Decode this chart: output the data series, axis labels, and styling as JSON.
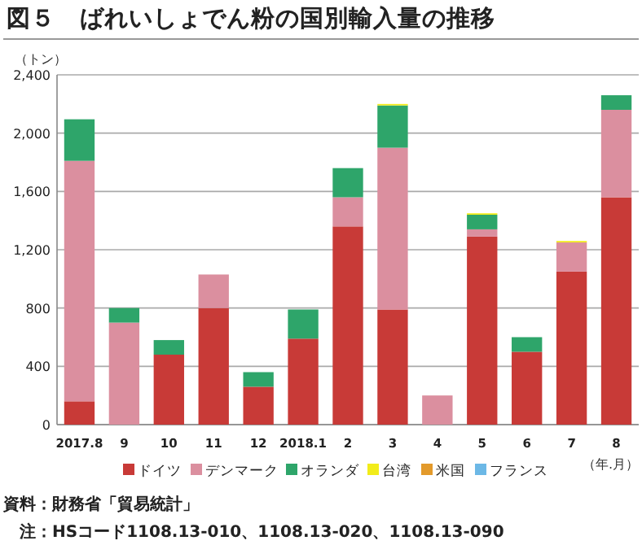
{
  "chart_data": {
    "type": "bar",
    "stacked": true,
    "title": "図５　ばれいしょでん粉の国別輸入量の推移",
    "ylabel": "（トン）",
    "xlabel": "（年.月）",
    "categories": [
      "2017.8",
      "9",
      "10",
      "11",
      "12",
      "2018.1",
      "2",
      "3",
      "4",
      "5",
      "6",
      "7",
      "8"
    ],
    "series": [
      {
        "name": "ドイツ",
        "color": "#c83a37",
        "values": [
          160,
          null,
          480,
          800,
          260,
          590,
          1360,
          790,
          null,
          1290,
          500,
          1050,
          1560
        ]
      },
      {
        "name": "デンマーク",
        "color": "#db8f9f",
        "values": [
          1650,
          700,
          null,
          230,
          null,
          null,
          200,
          1110,
          200,
          50,
          null,
          200,
          600
        ]
      },
      {
        "name": "オランダ",
        "color": "#2ea56a",
        "values": [
          285,
          100,
          100,
          null,
          100,
          200,
          200,
          290,
          null,
          100,
          100,
          null,
          100
        ]
      },
      {
        "name": "台湾",
        "color": "#f2ec1a",
        "values": [
          null,
          null,
          null,
          null,
          null,
          null,
          null,
          10,
          null,
          10,
          null,
          10,
          null
        ]
      },
      {
        "name": "米国",
        "color": "#e39a2b",
        "values": [
          null,
          null,
          null,
          null,
          null,
          null,
          null,
          null,
          null,
          null,
          null,
          null,
          null
        ]
      },
      {
        "name": "フランス",
        "color": "#6cb8e6",
        "values": [
          null,
          null,
          null,
          null,
          null,
          null,
          null,
          null,
          null,
          null,
          null,
          null,
          null
        ]
      }
    ],
    "ylim": [
      0,
      2400
    ],
    "yticks": [
      0,
      {
        "value": 400,
        "label": "400"
      },
      {
        "value": 800,
        "label": "800"
      },
      {
        "value": 1200,
        "label": "1,200"
      },
      {
        "value": 1600,
        "label": "1,600"
      },
      {
        "value": 2000,
        "label": "2,000"
      },
      {
        "value": 2400,
        "label": "2,400"
      }
    ],
    "grid": "y",
    "legend": "bottom",
    "annotations": [
      "資料：財務省「貿易統計」",
      "注：HSコード1108.13-010、1108.13-020、1108.13-090"
    ]
  }
}
